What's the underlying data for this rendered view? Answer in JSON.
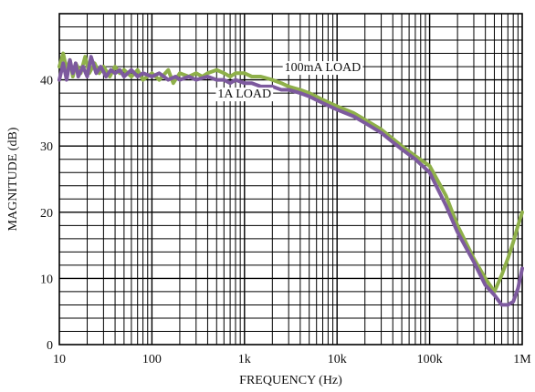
{
  "chart_data": {
    "type": "line",
    "xscale": "log",
    "xlim": [
      10,
      1000000
    ],
    "ylim": [
      0,
      50
    ],
    "xlabel": "FREQUENCY (Hz)",
    "ylabel": "MAGNITUDE (dB)",
    "x_ticks": [
      "10",
      "100",
      "1k",
      "10k",
      "100k",
      "1M"
    ],
    "y_ticks": [
      "0",
      "10",
      "20",
      "30",
      "40"
    ],
    "grid": true,
    "series": [
      {
        "name": "100mA LOAD",
        "color": "#8fb04a",
        "x": [
          10,
          11,
          12,
          13,
          14,
          15,
          17,
          19,
          21,
          24,
          27,
          30,
          35,
          40,
          45,
          50,
          60,
          70,
          80,
          100,
          120,
          150,
          170,
          200,
          250,
          300,
          350,
          400,
          500,
          600,
          700,
          800,
          1000,
          1200,
          1500,
          2000,
          2500,
          3000,
          4000,
          5000,
          7000,
          10000,
          15000,
          20000,
          30000,
          50000,
          70000,
          100000,
          150000,
          200000,
          300000,
          400000,
          500000,
          600000,
          700000,
          800000,
          900000,
          1000000
        ],
        "y": [
          42,
          44,
          41.5,
          43,
          40.5,
          42.5,
          41,
          43.5,
          41,
          42.5,
          41,
          42,
          40.5,
          42,
          41,
          41.5,
          40.5,
          41.5,
          40,
          41,
          40,
          41.5,
          39.5,
          41,
          40.5,
          41,
          40.5,
          41,
          41.5,
          41,
          40.5,
          41,
          41,
          40.5,
          40.5,
          40,
          39.5,
          39,
          38.5,
          38,
          37,
          36,
          35,
          34,
          32.5,
          30,
          28.5,
          27,
          22.5,
          18,
          13,
          10,
          8,
          10.5,
          13,
          15.5,
          18,
          20
        ]
      },
      {
        "name": "1A LOAD",
        "color": "#7d5a9e",
        "x": [
          10,
          11,
          12,
          13,
          14,
          15,
          16,
          18,
          20,
          22,
          25,
          28,
          32,
          36,
          40,
          45,
          50,
          60,
          70,
          80,
          100,
          120,
          150,
          180,
          200,
          250,
          300,
          400,
          500,
          600,
          700,
          800,
          1000,
          1200,
          1500,
          2000,
          2500,
          3000,
          4000,
          5000,
          7000,
          10000,
          15000,
          20000,
          30000,
          50000,
          70000,
          100000,
          150000,
          200000,
          300000,
          400000,
          500000,
          600000,
          700000,
          800000,
          900000,
          1000000
        ],
        "y": [
          40,
          42.5,
          40,
          43,
          41,
          42.5,
          40.5,
          42,
          40.5,
          43.5,
          41,
          42,
          40.5,
          41.5,
          41,
          41.5,
          40.5,
          41.5,
          40.5,
          41,
          40.5,
          41,
          40,
          40.5,
          40,
          40.5,
          40,
          40.5,
          40,
          40,
          39.5,
          40,
          39.5,
          39.5,
          39,
          39,
          38.5,
          38.5,
          38,
          37.5,
          36.5,
          35.5,
          34.5,
          33.5,
          32,
          29.5,
          28,
          26,
          21,
          17,
          12.5,
          9,
          7.5,
          6,
          6,
          6.5,
          8.5,
          11.5
        ]
      }
    ],
    "annotations": [
      {
        "text": "100mA LOAD",
        "x": 7000,
        "y": 42
      },
      {
        "text": "1A LOAD",
        "x": 1000,
        "y": 38
      }
    ]
  }
}
